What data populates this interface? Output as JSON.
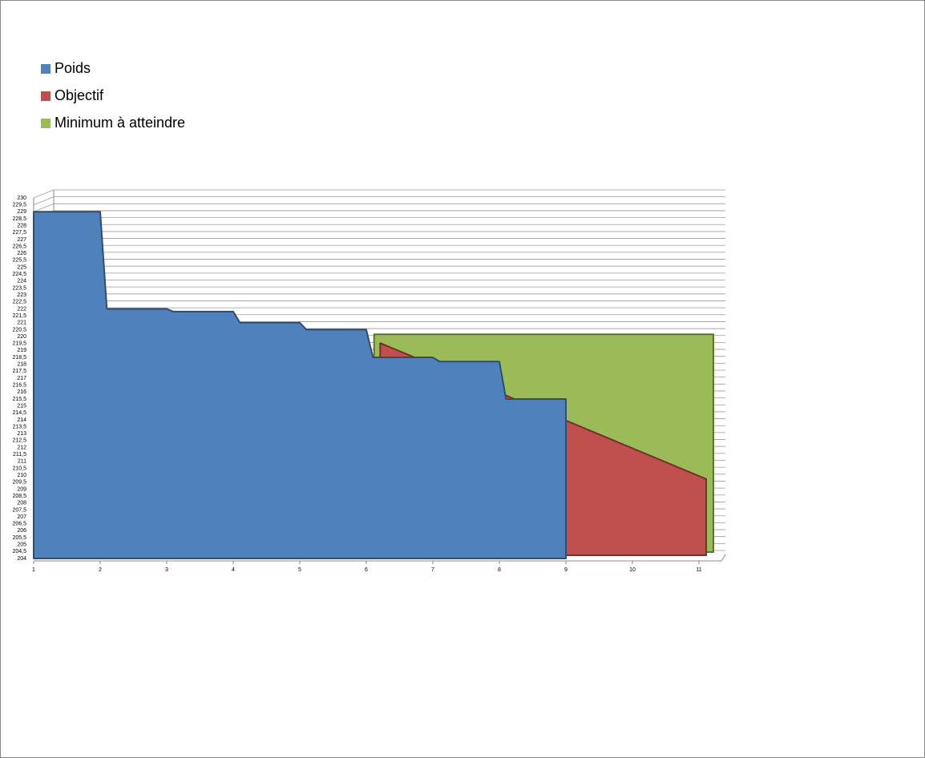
{
  "chart_data": {
    "type": "area",
    "xlim": [
      1,
      11
    ],
    "xticks": [
      1,
      2,
      3,
      4,
      5,
      6,
      7,
      8,
      9,
      10,
      11
    ],
    "ylim": [
      204,
      230
    ],
    "yticks": [
      204,
      {
        "value": 204.5,
        "label": "204,5"
      },
      205,
      {
        "value": 205.5,
        "label": "205,5"
      },
      206,
      {
        "value": 206.5,
        "label": "206,5"
      },
      207,
      {
        "value": 207.5,
        "label": "207,5"
      },
      208,
      {
        "value": 208.5,
        "label": "208,5"
      },
      209,
      {
        "value": 209.5,
        "label": "209,5"
      },
      210,
      {
        "value": 210.5,
        "label": "210,5"
      },
      211,
      {
        "value": 211.5,
        "label": "211,5"
      },
      212,
      {
        "value": 212.5,
        "label": "212,5"
      },
      213,
      {
        "value": 213.5,
        "label": "213,5"
      },
      214,
      {
        "value": 214.5,
        "label": "214,5"
      },
      215,
      {
        "value": 215.5,
        "label": "215,5"
      },
      216,
      {
        "value": 216.5,
        "label": "216,5"
      },
      217,
      {
        "value": 217.5,
        "label": "217,5"
      },
      218,
      {
        "value": 218.5,
        "label": "218,5"
      },
      219,
      {
        "value": 219.5,
        "label": "219,5"
      },
      220,
      {
        "value": 220.5,
        "label": "220,5"
      },
      221,
      {
        "value": 221.5,
        "label": "221,5"
      },
      222,
      {
        "value": 222.5,
        "label": "222,5"
      },
      223,
      {
        "value": 223.5,
        "label": "223,5"
      },
      224,
      {
        "value": 224.5,
        "label": "224,5"
      },
      225,
      {
        "value": 225.5,
        "label": "225,5"
      },
      226,
      {
        "value": 226.5,
        "label": "226,5"
      },
      227,
      {
        "value": 227.5,
        "label": "227,5"
      },
      228,
      {
        "value": 228.5,
        "label": "228,5"
      },
      229,
      {
        "value": 229.5,
        "label": "229,5"
      },
      230
    ],
    "grid": true,
    "series": [
      {
        "name": "Poids",
        "color": "#4f81bd",
        "x": [
          1,
          2,
          2.1,
          3,
          3.1,
          4,
          4.1,
          5,
          5.1,
          6,
          6.1,
          7,
          7.1,
          8,
          8.1,
          9
        ],
        "values": [
          229,
          229,
          222,
          222,
          221.8,
          221.8,
          221,
          221,
          220.5,
          220.5,
          218.5,
          218.5,
          218.2,
          218.2,
          215.5,
          215.5
        ]
      },
      {
        "name": "Objectif",
        "color": "#c0504d",
        "x": [
          6.1,
          11
        ],
        "values": [
          219.3,
          209.5
        ]
      },
      {
        "name": "Minimum à atteindre",
        "color": "#9bbb59",
        "x": [
          5.9,
          11
        ],
        "values": [
          219.7,
          219.7
        ]
      }
    ]
  }
}
